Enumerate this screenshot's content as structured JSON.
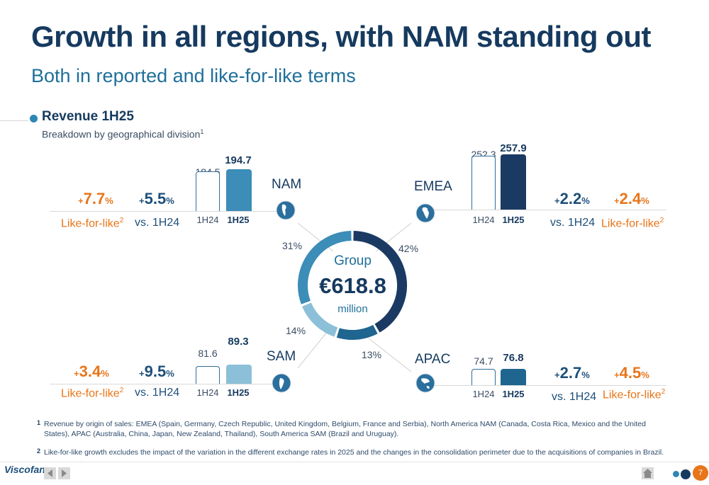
{
  "header": {
    "title": "Growth in all regions, with NAM standing out",
    "subtitle": "Both in reported and like-for-like terms"
  },
  "section": {
    "title": "Revenue 1H25",
    "subtitle": "Breakdown by geographical division",
    "subtitle_sup": "1"
  },
  "group": {
    "label": "Group",
    "value": "€618.8",
    "unit": "million"
  },
  "labels": {
    "prev": "1H24",
    "cur": "1H25",
    "vs": "vs. 1H24",
    "lfl": "Like-for-like",
    "lfl_sup": "2",
    "pct": "%",
    "plus": "+"
  },
  "chart_data": {
    "type": "bar",
    "categories": [
      "1H24",
      "1H25"
    ],
    "series": [
      {
        "name": "NAM",
        "values": [
          184.5,
          194.7
        ],
        "labels": [
          "184.5",
          "194.7"
        ],
        "share": "31%",
        "growth": "5.5",
        "lfl": "7.7"
      },
      {
        "name": "EMEA",
        "values": [
          252.3,
          257.9
        ],
        "labels": [
          "252.3",
          "257.9"
        ],
        "share": "42%",
        "growth": "2.2",
        "lfl": "2.4"
      },
      {
        "name": "SAM",
        "values": [
          81.6,
          89.3
        ],
        "labels": [
          "81.6",
          "89.3"
        ],
        "share": "14%",
        "growth": "9.5",
        "lfl": "3.4"
      },
      {
        "name": "APAC",
        "values": [
          74.7,
          76.8
        ],
        "labels": [
          "74.7",
          "76.8"
        ],
        "share": "13%",
        "growth": "2.7",
        "lfl": "4.5"
      }
    ],
    "donut": [
      {
        "name": "EMEA",
        "value": 42,
        "color": "#1b3a63"
      },
      {
        "name": "APAC",
        "value": 13,
        "color": "#1e6590"
      },
      {
        "name": "SAM",
        "value": 14,
        "color": "#8cc0d8"
      },
      {
        "name": "NAM",
        "value": 31,
        "color": "#3c8db8"
      }
    ]
  },
  "colors": {
    "nam": "#3c8db8",
    "emea": "#1b3a63",
    "sam": "#8cc0d8",
    "apac": "#1e6590",
    "accent": "#e8751a"
  },
  "footnotes": [
    {
      "num": "1",
      "text": "Revenue by origin of sales: EMEA (Spain, Germany, Czech Republic, United Kingdom, Belgium, France and Serbia), North America NAM (Canada, Costa Rica, Mexico and the United States), APAC (Australia, China, Japan, New Zealand, Thailand), South America SAM (Brazil and Uruguay)."
    },
    {
      "num": "2",
      "text": "Like-for-like growth excludes the impact of the variation in the different exchange rates in 2025 and the changes in the consolidation perimeter due to the acquisitions of companies in Brazil."
    }
  ],
  "footer": {
    "logo": "Viscofan",
    "page": "7",
    "icons": [
      "back-arrow-icon",
      "forward-arrow-icon",
      "home-icon"
    ]
  }
}
